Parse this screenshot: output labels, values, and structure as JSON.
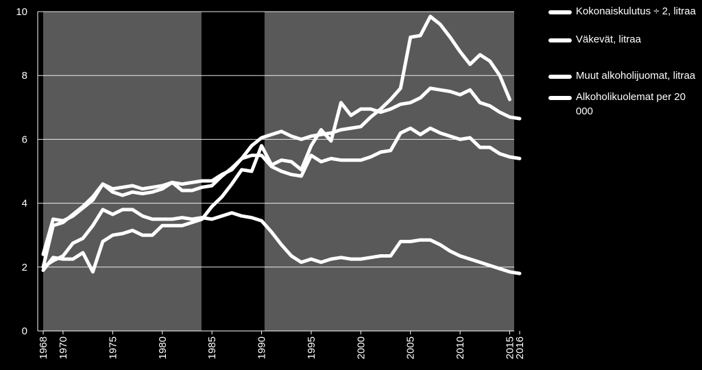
{
  "chart_data": {
    "type": "line",
    "xlim": [
      1968,
      2016
    ],
    "ylim": [
      0,
      10
    ],
    "yticks": [
      0,
      2,
      4,
      6,
      8,
      10
    ],
    "xticks": [
      1968,
      1970,
      1975,
      1980,
      1985,
      1990,
      1995,
      2000,
      2005,
      2010,
      2015,
      2016
    ],
    "grid": true,
    "legend_position": "right",
    "background_colors": {
      "gray": "#595959",
      "black": "#000000",
      "line": "#ffffff"
    },
    "shaded_spans": [
      [
        1968,
        1984.5
      ],
      [
        1990.3,
        2016
      ]
    ],
    "series": [
      {
        "name": "Kokonaiskulutus ÷ 2, litraa",
        "x": [
          1968,
          1969,
          1970,
          1971,
          1972,
          1973,
          1974,
          1975,
          1976,
          1977,
          1978,
          1979,
          1980,
          1981,
          1982,
          1983,
          1984,
          1985,
          1986,
          1987,
          1988,
          1989,
          1990,
          1991,
          1992,
          1993,
          1994,
          1995,
          1996,
          1997,
          1998,
          1999,
          2000,
          2001,
          2002,
          2003,
          2004,
          2005,
          2006,
          2007,
          2008,
          2009,
          2010,
          2011,
          2012,
          2013,
          2014,
          2015,
          2016
        ],
        "values": [
          2.0,
          3.3,
          3.4,
          3.65,
          3.9,
          4.2,
          4.6,
          4.45,
          4.5,
          4.55,
          4.45,
          4.5,
          4.55,
          4.65,
          4.6,
          4.65,
          4.7,
          4.7,
          4.9,
          5.05,
          5.4,
          5.8,
          6.05,
          6.15,
          6.25,
          6.1,
          6.0,
          6.1,
          6.15,
          6.2,
          6.3,
          6.35,
          6.4,
          6.7,
          6.95,
          7.25,
          7.6,
          9.2,
          9.25,
          9.85,
          9.6,
          9.2,
          8.75,
          8.35,
          8.65,
          8.45,
          8.0,
          7.25,
          null
        ]
      },
      {
        "name": "Väkevät, litraa",
        "x": [
          1968,
          1969,
          1970,
          1971,
          1972,
          1973,
          1974,
          1975,
          1976,
          1977,
          1978,
          1979,
          1980,
          1981,
          1982,
          1983,
          1984,
          1985,
          1986,
          1987,
          1988,
          1989,
          1990,
          1991,
          1992,
          1993,
          1994,
          1995,
          1996,
          1997,
          1998,
          1999,
          2000,
          2001,
          2002,
          2003,
          2004,
          2005,
          2006,
          2007,
          2008,
          2009,
          2010,
          2011,
          2012,
          2013,
          2014,
          2015,
          2016
        ],
        "values": [
          2.0,
          2.2,
          2.35,
          2.75,
          2.9,
          3.3,
          3.8,
          3.65,
          3.8,
          3.8,
          3.6,
          3.5,
          3.5,
          3.5,
          3.55,
          3.5,
          3.55,
          3.5,
          3.6,
          3.7,
          3.6,
          3.55,
          3.45,
          3.1,
          2.7,
          2.35,
          2.15,
          2.25,
          2.15,
          2.25,
          2.3,
          2.25,
          2.25,
          2.3,
          2.35,
          2.35,
          2.8,
          2.8,
          2.85,
          2.85,
          2.7,
          2.5,
          2.35,
          2.25,
          2.15,
          2.05,
          1.95,
          1.85,
          1.8
        ]
      },
      {
        "name": "Muut alkoholijuomat, litraa",
        "x": [
          1968,
          1969,
          1970,
          1971,
          1972,
          1973,
          1974,
          1975,
          1976,
          1977,
          1978,
          1979,
          1980,
          1981,
          1982,
          1983,
          1984,
          1985,
          1986,
          1987,
          1988,
          1989,
          1990,
          1991,
          1992,
          1993,
          1994,
          1995,
          1996,
          1997,
          1998,
          1999,
          2000,
          2001,
          2002,
          2003,
          2004,
          2005,
          2006,
          2007,
          2008,
          2009,
          2010,
          2011,
          2012,
          2013,
          2014,
          2015,
          2016
        ],
        "values": [
          2.4,
          3.5,
          3.45,
          3.6,
          3.85,
          4.1,
          4.6,
          4.35,
          4.25,
          4.35,
          4.3,
          4.35,
          4.45,
          4.65,
          4.4,
          4.4,
          4.5,
          4.55,
          4.85,
          5.1,
          5.4,
          5.5,
          5.5,
          5.15,
          5.0,
          4.9,
          4.85,
          5.5,
          5.3,
          5.4,
          5.35,
          5.35,
          5.35,
          5.45,
          5.6,
          5.65,
          6.2,
          6.35,
          6.15,
          6.35,
          6.2,
          6.1,
          6.0,
          6.05,
          5.75,
          5.75,
          5.55,
          5.45,
          5.4
        ]
      },
      {
        "name": "Alkoholikuolemat per 20 000",
        "x": [
          1968,
          1969,
          1970,
          1971,
          1972,
          1973,
          1974,
          1975,
          1976,
          1977,
          1978,
          1979,
          1980,
          1981,
          1982,
          1983,
          1984,
          1985,
          1986,
          1987,
          1988,
          1989,
          1990,
          1991,
          1992,
          1993,
          1994,
          1995,
          1996,
          1997,
          1998,
          1999,
          2000,
          2001,
          2002,
          2003,
          2004,
          2005,
          2006,
          2007,
          2008,
          2009,
          2010,
          2011,
          2012,
          2013,
          2014,
          2015,
          2016
        ],
        "values": [
          1.9,
          2.3,
          2.25,
          2.25,
          2.45,
          1.85,
          2.8,
          3.0,
          3.05,
          3.15,
          3.0,
          3.0,
          3.3,
          3.3,
          3.3,
          3.4,
          3.5,
          3.9,
          4.2,
          4.6,
          5.05,
          5.0,
          5.8,
          5.2,
          5.35,
          5.3,
          5.05,
          5.8,
          6.3,
          5.95,
          7.15,
          6.75,
          6.95,
          6.95,
          6.85,
          6.95,
          7.1,
          7.15,
          7.3,
          7.6,
          7.55,
          7.5,
          7.4,
          7.55,
          7.15,
          7.05,
          6.85,
          6.7,
          6.65
        ]
      }
    ]
  }
}
